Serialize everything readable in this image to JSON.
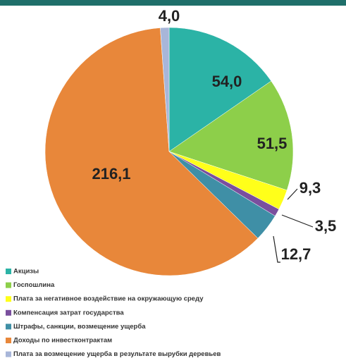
{
  "chart_data": {
    "type": "pie",
    "categories": [
      "Акцизы",
      "Госпошлина",
      "Плата за негативное воздействие на окружающую среду",
      "Компенсация затрат государства",
      "Штрафы, санкции, возмещение ущерба",
      "Доходы по инвестконтрактам",
      "Плата за возмещение ущерба в результате вырубки деревьев"
    ],
    "values": [
      54.0,
      51.5,
      9.3,
      3.5,
      12.7,
      216.1,
      4.0
    ],
    "value_labels": [
      "54,0",
      "51,5",
      "9,3",
      "3,5",
      "12,7",
      "216,1",
      "4,0"
    ],
    "colors": [
      "#2bb3a6",
      "#8dcf4a",
      "#ffff1a",
      "#7a4f9e",
      "#3f8fa6",
      "#e8873a",
      "#a8b6d9"
    ],
    "legend": "bottom"
  }
}
